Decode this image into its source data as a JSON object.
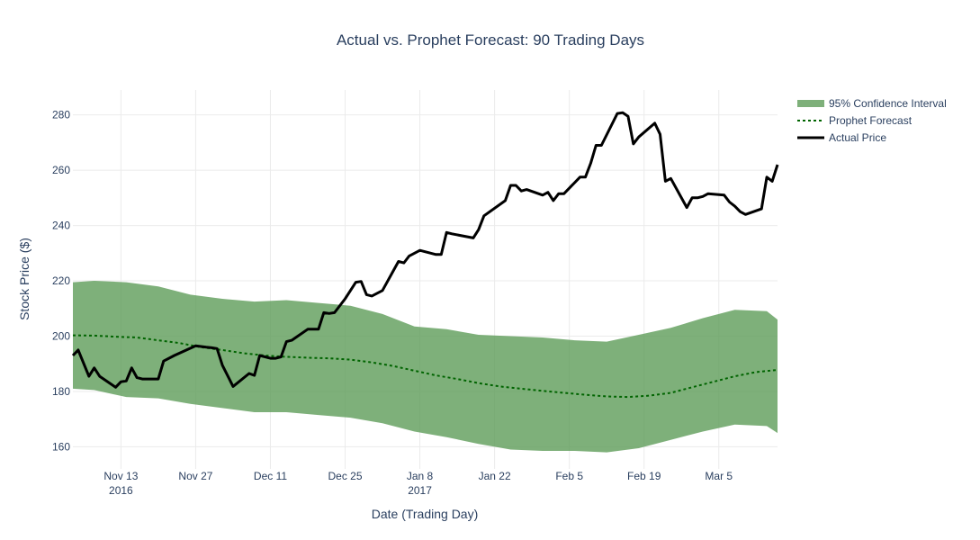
{
  "chart_data": {
    "type": "line",
    "title": "Actual vs. Prophet Forecast: 90 Trading Days",
    "xlabel": "Date (Trading Day)",
    "ylabel": "Stock Price ($)",
    "xlim": [
      "2016-11-04",
      "2017-03-16"
    ],
    "ylim": [
      152,
      289
    ],
    "grid": true,
    "legend_position": "top-right",
    "x_ticks": [
      {
        "date": "2016-11-13",
        "label": "Nov 13",
        "sub": "2016"
      },
      {
        "date": "2016-11-27",
        "label": "Nov 27",
        "sub": ""
      },
      {
        "date": "2016-12-11",
        "label": "Dec 11",
        "sub": ""
      },
      {
        "date": "2016-12-25",
        "label": "Dec 25",
        "sub": ""
      },
      {
        "date": "2017-01-08",
        "label": "Jan 8",
        "sub": "2017"
      },
      {
        "date": "2017-01-22",
        "label": "Jan 22",
        "sub": ""
      },
      {
        "date": "2017-02-05",
        "label": "Feb 5",
        "sub": ""
      },
      {
        "date": "2017-02-19",
        "label": "Feb 19",
        "sub": ""
      },
      {
        "date": "2017-03-05",
        "label": "Mar 5",
        "sub": ""
      }
    ],
    "y_ticks": [
      160,
      180,
      200,
      220,
      240,
      260,
      280
    ],
    "series": [
      {
        "name": "95% Confidence Interval",
        "kind": "band",
        "color": "#5a9a55",
        "x": [
          "2016-11-04",
          "2016-11-08",
          "2016-11-14",
          "2016-11-20",
          "2016-11-26",
          "2016-12-02",
          "2016-12-08",
          "2016-12-14",
          "2016-12-20",
          "2016-12-26",
          "2017-01-01",
          "2017-01-07",
          "2017-01-13",
          "2017-01-19",
          "2017-01-25",
          "2017-01-31",
          "2017-02-06",
          "2017-02-12",
          "2017-02-18",
          "2017-02-24",
          "2017-03-02",
          "2017-03-08",
          "2017-03-14",
          "2017-03-16"
        ],
        "upper": [
          219.5,
          220.0,
          219.5,
          218.0,
          215.0,
          213.5,
          212.5,
          213.0,
          212.0,
          211.0,
          208.0,
          203.5,
          202.5,
          200.5,
          200.0,
          199.5,
          198.5,
          198.0,
          200.5,
          203.0,
          206.5,
          209.5,
          209.0,
          206.0
        ],
        "lower": [
          181.0,
          180.5,
          178.0,
          177.5,
          175.5,
          174.0,
          172.5,
          172.5,
          171.5,
          170.5,
          168.5,
          165.5,
          163.5,
          161.0,
          159.0,
          158.5,
          158.5,
          158.0,
          159.5,
          162.5,
          165.5,
          168.0,
          167.5,
          165.0
        ]
      },
      {
        "name": "Prophet Forecast",
        "kind": "dotted",
        "color": "#006400",
        "x": [
          "2016-11-04",
          "2016-11-08",
          "2016-11-12",
          "2016-11-16",
          "2016-11-20",
          "2016-11-24",
          "2016-11-28",
          "2016-12-02",
          "2016-12-06",
          "2016-12-10",
          "2016-12-14",
          "2016-12-18",
          "2016-12-22",
          "2016-12-26",
          "2016-12-30",
          "2017-01-03",
          "2017-01-07",
          "2017-01-11",
          "2017-01-15",
          "2017-01-19",
          "2017-01-23",
          "2017-01-27",
          "2017-01-31",
          "2017-02-04",
          "2017-02-08",
          "2017-02-12",
          "2017-02-16",
          "2017-02-20",
          "2017-02-24",
          "2017-02-28",
          "2017-03-04",
          "2017-03-08",
          "2017-03-12",
          "2017-03-16"
        ],
        "values": [
          200.3,
          200.2,
          199.8,
          199.5,
          198.5,
          197.5,
          196.0,
          195.0,
          193.8,
          193.0,
          192.5,
          192.2,
          192.0,
          191.5,
          190.5,
          189.2,
          187.5,
          185.8,
          184.5,
          183.0,
          181.8,
          181.0,
          180.2,
          179.5,
          178.8,
          178.2,
          178.0,
          178.5,
          179.5,
          181.5,
          183.5,
          185.5,
          187.0,
          187.8
        ]
      },
      {
        "name": "Actual Price",
        "kind": "solid",
        "color": "#000000",
        "x": [
          "2016-11-04",
          "2016-11-05",
          "2016-11-07",
          "2016-11-08",
          "2016-11-09",
          "2016-11-12",
          "2016-11-13",
          "2016-11-14",
          "2016-11-15",
          "2016-11-16",
          "2016-11-17",
          "2016-11-20",
          "2016-11-21",
          "2016-11-23",
          "2016-11-27",
          "2016-11-29",
          "2016-11-30",
          "2016-12-01",
          "2016-12-02",
          "2016-12-04",
          "2016-12-07",
          "2016-12-08",
          "2016-12-09",
          "2016-12-11",
          "2016-12-12",
          "2016-12-13",
          "2016-12-14",
          "2016-12-15",
          "2016-12-18",
          "2016-12-19",
          "2016-12-20",
          "2016-12-21",
          "2016-12-22",
          "2016-12-23",
          "2016-12-25",
          "2016-12-27",
          "2016-12-28",
          "2016-12-29",
          "2016-12-30",
          "2017-01-01",
          "2017-01-04",
          "2017-01-05",
          "2017-01-06",
          "2017-01-08",
          "2017-01-11",
          "2017-01-12",
          "2017-01-13",
          "2017-01-14",
          "2017-01-18",
          "2017-01-19",
          "2017-01-20",
          "2017-01-24",
          "2017-01-25",
          "2017-01-26",
          "2017-01-27",
          "2017-01-28",
          "2017-01-31",
          "2017-02-01",
          "2017-02-02",
          "2017-02-03",
          "2017-02-04",
          "2017-02-07",
          "2017-02-08",
          "2017-02-09",
          "2017-02-10",
          "2017-02-11",
          "2017-02-14",
          "2017-02-15",
          "2017-02-16",
          "2017-02-17",
          "2017-02-18",
          "2017-02-21",
          "2017-02-22",
          "2017-02-23",
          "2017-02-24",
          "2017-02-27",
          "2017-02-28",
          "2017-03-01",
          "2017-03-02",
          "2017-03-03",
          "2017-03-06",
          "2017-03-07",
          "2017-03-08",
          "2017-03-09",
          "2017-03-10",
          "2017-03-13",
          "2017-03-14",
          "2017-03-15",
          "2017-03-16"
        ],
        "values": [
          193.0,
          195.0,
          185.5,
          188.5,
          185.5,
          181.5,
          183.5,
          183.8,
          188.5,
          185.0,
          184.5,
          184.5,
          191.0,
          193.0,
          196.5,
          196.0,
          195.8,
          195.5,
          189.5,
          181.8,
          186.5,
          185.8,
          193.0,
          192.0,
          192.0,
          192.5,
          198.0,
          198.5,
          202.5,
          202.5,
          202.5,
          208.5,
          208.2,
          208.5,
          213.5,
          219.5,
          219.8,
          215.0,
          214.5,
          216.5,
          227.0,
          226.5,
          229.0,
          231.0,
          229.5,
          229.5,
          237.5,
          237.0,
          235.5,
          238.5,
          243.5,
          249.0,
          254.5,
          254.5,
          252.5,
          253.0,
          251.0,
          252.0,
          249.0,
          251.5,
          251.5,
          257.5,
          257.5,
          262.5,
          269.0,
          269.0,
          280.5,
          280.8,
          279.5,
          269.5,
          272.0,
          277.0,
          273.0,
          256.0,
          257.0,
          246.5,
          250.0,
          250.0,
          250.5,
          251.5,
          251.0,
          248.5,
          247.0,
          245.0,
          244.0,
          246.0,
          257.5,
          256.0,
          262.0
        ]
      }
    ]
  }
}
